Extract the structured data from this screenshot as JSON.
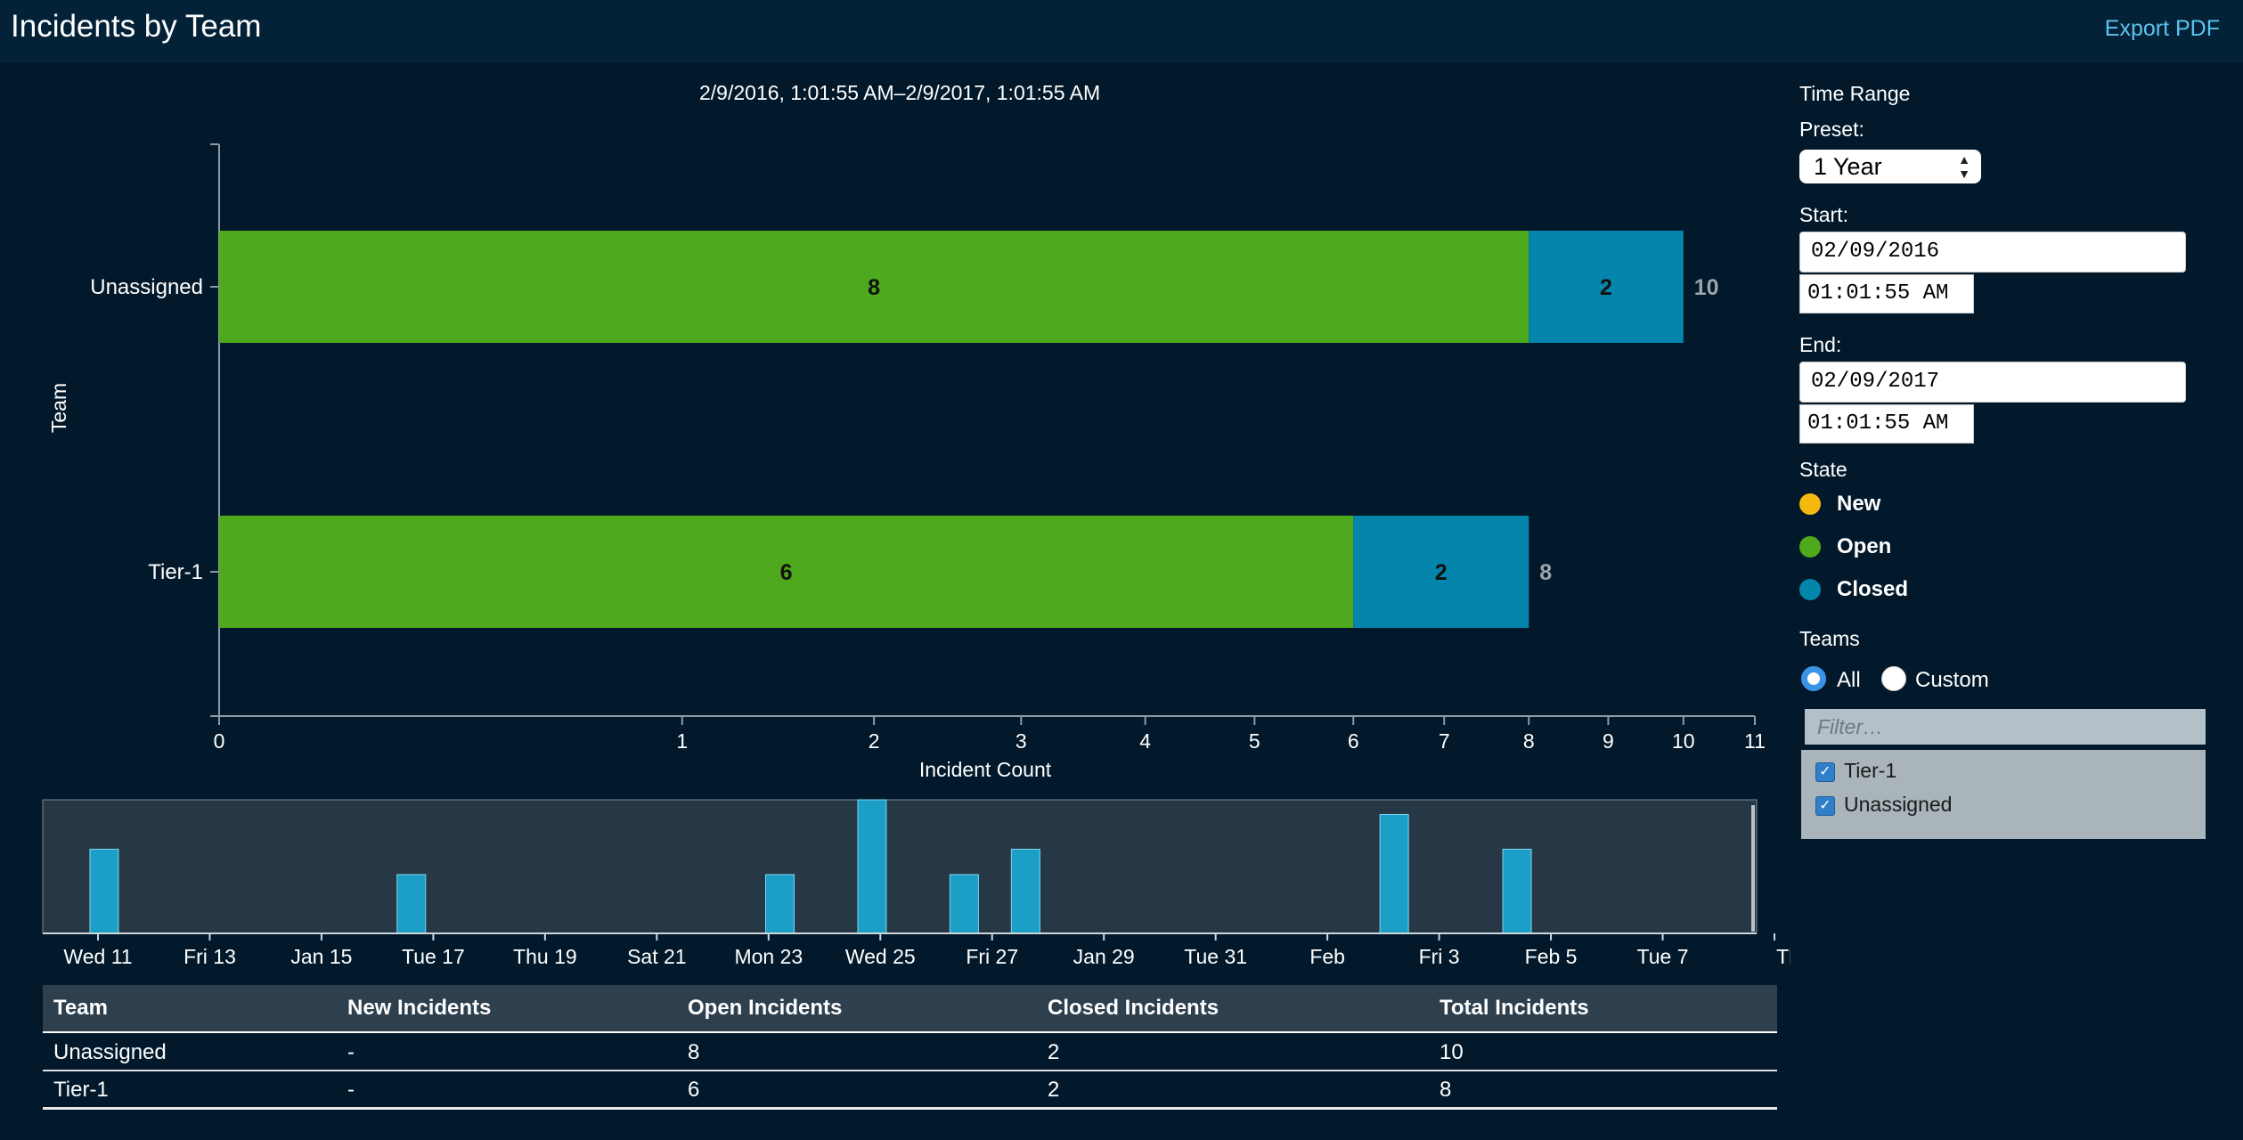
{
  "header": {
    "title": "Incidents by Team",
    "export_label": "Export PDF"
  },
  "range_label": "2/9/2016, 1:01:55 AM–2/9/2017, 1:01:55 AM",
  "colors": {
    "open": "#4ea91c",
    "closed": "#0485ab",
    "new": "#f4b80f",
    "timeline_bar": "#1c9fc6"
  },
  "chart_data": {
    "type": "bar",
    "orientation": "horizontal",
    "stacked": true,
    "categories": [
      "Unassigned",
      "Tier-1"
    ],
    "series": [
      {
        "name": "Open",
        "values": [
          8,
          6
        ]
      },
      {
        "name": "Closed",
        "values": [
          2,
          2
        ]
      }
    ],
    "totals": [
      10,
      8
    ],
    "xlabel": "Incident Count",
    "ylabel": "Team",
    "x_ticks": [
      0,
      1,
      2,
      3,
      4,
      5,
      6,
      7,
      8,
      9,
      10,
      11
    ],
    "xlim": [
      0,
      11
    ],
    "x_scale": "sqrt"
  },
  "timeline": {
    "tick_labels": [
      "Wed 11",
      "Fri 13",
      "Jan 15",
      "Tue 17",
      "Thu 19",
      "Sat 21",
      "Mon 23",
      "Wed 25",
      "Fri 27",
      "Jan 29",
      "Tue 31",
      "Feb",
      "Fri 3",
      "Feb 5",
      "Tue 7",
      "Thu"
    ],
    "bars": [
      {
        "day": 11.5,
        "level": 0.63
      },
      {
        "day": 16.5,
        "level": 0.44
      },
      {
        "day": 22.5,
        "level": 0.44
      },
      {
        "day": 24.0,
        "level": 1.0
      },
      {
        "day": 25.5,
        "level": 0.44
      },
      {
        "day": 26.5,
        "level": 0.63
      },
      {
        "day": 32.5,
        "level": 0.89
      },
      {
        "day": 34.5,
        "level": 0.63
      }
    ]
  },
  "panel": {
    "time_range_label": "Time Range",
    "preset_label": "Preset:",
    "preset_value": "1 Year",
    "start_label": "Start:",
    "start_date": "02/09/2016",
    "start_time": "01:01:55 AM",
    "end_label": "End:",
    "end_date": "02/09/2017",
    "end_time": "01:01:55 AM",
    "state_label": "State",
    "states": [
      "New",
      "Open",
      "Closed"
    ],
    "teams_label": "Teams",
    "teams_all": "All",
    "teams_custom": "Custom",
    "filter_placeholder": "Filter…",
    "team_options": [
      "Tier-1",
      "Unassigned"
    ]
  },
  "table": {
    "headers": [
      "Team",
      "New Incidents",
      "Open Incidents",
      "Closed Incidents",
      "Total Incidents"
    ],
    "rows": [
      [
        "Unassigned",
        "-",
        "8",
        "2",
        "10"
      ],
      [
        "Tier-1",
        "-",
        "6",
        "2",
        "8"
      ]
    ]
  }
}
